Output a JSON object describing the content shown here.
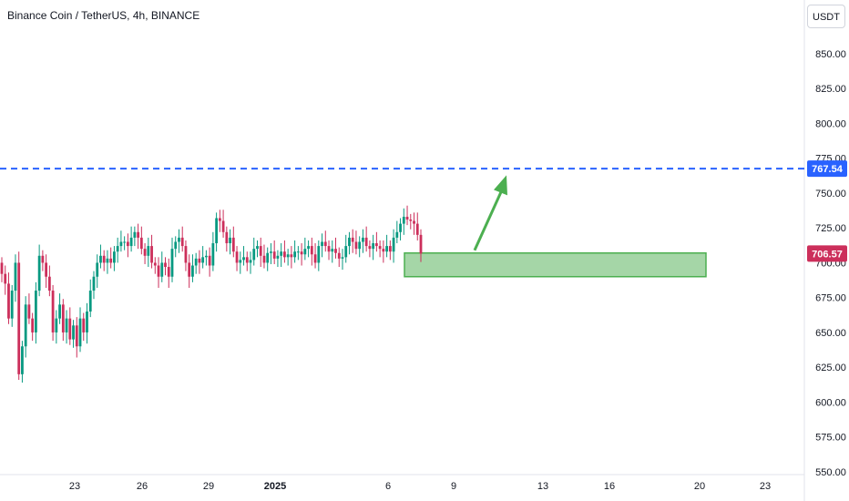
{
  "header": {
    "title": "Binance Coin / TetherUS, 4h, BINANCE",
    "currency": "USDT"
  },
  "colors": {
    "up": "#089981",
    "down": "#cc2f5b",
    "resistance": "#2962ff",
    "zone_fill": "#a5d6a7",
    "zone_border": "#4caf50",
    "arrow": "#4caf50"
  },
  "chart_data": {
    "type": "candlestick",
    "title": "Binance Coin / TetherUS, 4h, BINANCE",
    "y_axis": {
      "ticks": [
        "850.00",
        "825.00",
        "800.00",
        "775.00",
        "750.00",
        "725.00",
        "700.00",
        "675.00",
        "650.00",
        "625.00",
        "600.00",
        "575.00",
        "550.00"
      ],
      "range": [
        548,
        865
      ],
      "position": "right"
    },
    "x_axis": {
      "ticks": [
        "23",
        "26",
        "29",
        "2025",
        "6",
        "9",
        "13",
        "16",
        "20",
        "23"
      ]
    },
    "price_labels": [
      {
        "value": "767.54",
        "color": "#2962ff"
      },
      {
        "value": "706.57",
        "color": "#cc2f5b"
      }
    ],
    "resistance_level": 767.54,
    "current_price": 706.57,
    "demand_zone": {
      "low": 690,
      "high": 707,
      "from": "6",
      "to": "20"
    },
    "arrow": {
      "from_price": 707,
      "to_price": 768,
      "direction": "up"
    },
    "closes": [
      692,
      685,
      660,
      680,
      700,
      620,
      640,
      670,
      660,
      650,
      680,
      705,
      700,
      690,
      680,
      650,
      660,
      670,
      650,
      660,
      645,
      655,
      640,
      660,
      650,
      665,
      680,
      690,
      700,
      705,
      700,
      703,
      700,
      708,
      712,
      715,
      715,
      712,
      718,
      722,
      718,
      710,
      705,
      712,
      700,
      698,
      690,
      700,
      697,
      690,
      710,
      715,
      718,
      712,
      700,
      690,
      698,
      703,
      700,
      704,
      705,
      698,
      714,
      732,
      730,
      722,
      714,
      718,
      708,
      700,
      702,
      704,
      700,
      702,
      710,
      712,
      705,
      700,
      707,
      708,
      703,
      705,
      708,
      704,
      706,
      704,
      708,
      708,
      706,
      710,
      712,
      706,
      700,
      712,
      715,
      712,
      708,
      710,
      707,
      703,
      704,
      712,
      718,
      715,
      710,
      715,
      718,
      712,
      710,
      714,
      712,
      710,
      708,
      712,
      708,
      718,
      722,
      728,
      733,
      731,
      730,
      728,
      720,
      706.57
    ]
  }
}
